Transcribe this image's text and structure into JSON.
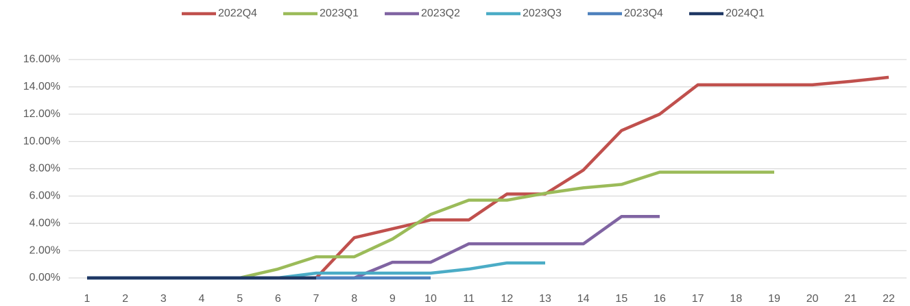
{
  "chart_data": {
    "type": "line",
    "x": [
      1,
      2,
      3,
      4,
      5,
      6,
      7,
      8,
      9,
      10,
      11,
      12,
      13,
      14,
      15,
      16,
      17,
      18,
      19,
      20,
      21,
      22
    ],
    "series": [
      {
        "name": "2022Q4",
        "color": "#c0504d",
        "values": [
          0,
          0,
          0,
          0,
          0,
          0,
          0,
          2.95,
          3.6,
          4.25,
          4.25,
          6.15,
          6.15,
          7.9,
          10.8,
          12.0,
          14.15,
          14.15,
          14.15,
          14.15,
          14.4,
          14.7
        ]
      },
      {
        "name": "2023Q1",
        "color": "#9bbb59",
        "values": [
          0,
          0,
          0,
          0,
          0,
          0.65,
          1.55,
          1.55,
          2.85,
          4.65,
          5.7,
          5.7,
          6.2,
          6.6,
          6.85,
          7.75,
          7.75,
          7.75,
          7.75,
          null,
          null,
          null
        ]
      },
      {
        "name": "2023Q2",
        "color": "#8064a2",
        "values": [
          0,
          0,
          0,
          0,
          0,
          0,
          0,
          0,
          1.15,
          1.15,
          2.5,
          2.5,
          2.5,
          2.5,
          4.5,
          4.5,
          null,
          null,
          null,
          null,
          null,
          null
        ]
      },
      {
        "name": "2023Q3",
        "color": "#4bacc6",
        "values": [
          0,
          0,
          0,
          0,
          0,
          0,
          0.35,
          0.35,
          0.35,
          0.35,
          0.65,
          1.1,
          1.1,
          null,
          null,
          null,
          null,
          null,
          null,
          null,
          null,
          null
        ]
      },
      {
        "name": "2023Q4",
        "color": "#4f81bd",
        "values": [
          0,
          0,
          0,
          0,
          0,
          0,
          0,
          0,
          0,
          0,
          null,
          null,
          null,
          null,
          null,
          null,
          null,
          null,
          null,
          null,
          null,
          null
        ]
      },
      {
        "name": "2024Q1",
        "color": "#1f3864",
        "values": [
          0,
          0,
          0,
          0,
          0,
          0,
          0,
          null,
          null,
          null,
          null,
          null,
          null,
          null,
          null,
          null,
          null,
          null,
          null,
          null,
          null,
          null
        ]
      }
    ],
    "ylim": [
      0,
      16
    ],
    "yticks": [
      {
        "value": 0,
        "label": "0.00%"
      },
      {
        "value": 2,
        "label": "2.00%"
      },
      {
        "value": 4,
        "label": "4.00%"
      },
      {
        "value": 6,
        "label": "6.00%"
      },
      {
        "value": 8,
        "label": "8.00%"
      },
      {
        "value": 10,
        "label": "10.00%"
      },
      {
        "value": 12,
        "label": "12.00%"
      },
      {
        "value": 14,
        "label": "14.00%"
      },
      {
        "value": 16,
        "label": "16.00%"
      }
    ],
    "grid": true,
    "legend": "top"
  }
}
